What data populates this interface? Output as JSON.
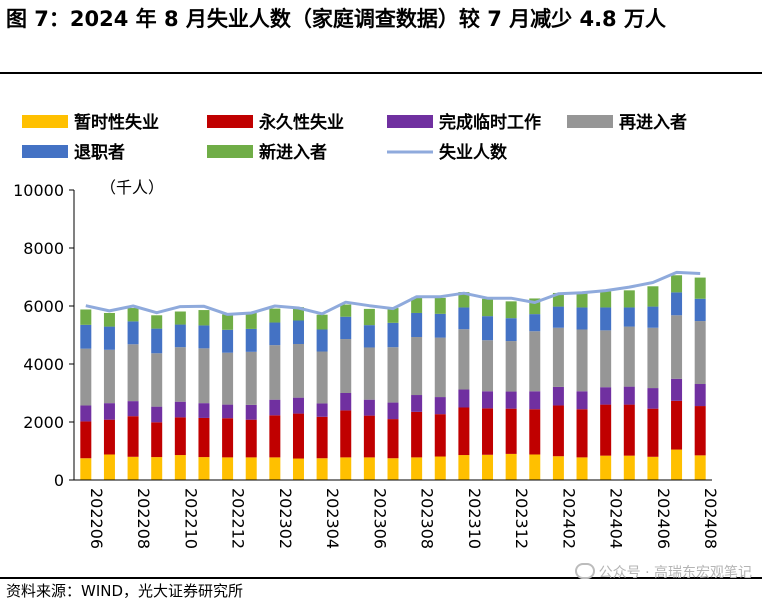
{
  "header": {
    "title": "图 7：2024 年 8 月失业人数（家庭调查数据）较 7 月减少 4.8 万人"
  },
  "footer": {
    "source": "资料来源：WIND，光大证券研究所",
    "watermark": "公众号 · 高瑞东宏观笔记"
  },
  "chart_data": {
    "type": "bar",
    "stacked": true,
    "unit_label": "（千人）",
    "ylim": [
      0,
      10000
    ],
    "yticks": [
      "0",
      "2000",
      "4000",
      "6000",
      "8000",
      "10000"
    ],
    "categories": [
      "202206",
      "202207",
      "202208",
      "202209",
      "202210",
      "202211",
      "202212",
      "202301",
      "202302",
      "202303",
      "202304",
      "202305",
      "202306",
      "202307",
      "202308",
      "202309",
      "202310",
      "202311",
      "202312",
      "202401",
      "202402",
      "202403",
      "202404",
      "202405",
      "202406",
      "202407",
      "202408"
    ],
    "xtick_labels": [
      "202206",
      "202208",
      "202210",
      "202212",
      "202302",
      "202304",
      "202306",
      "202308",
      "202310",
      "202312",
      "202402",
      "202404",
      "202406",
      "202408"
    ],
    "series": [
      {
        "name": "暂时性失业",
        "color": "#ffc000",
        "values": [
          750,
          880,
          800,
          790,
          860,
          790,
          780,
          780,
          780,
          740,
          750,
          780,
          780,
          750,
          780,
          810,
          860,
          870,
          900,
          880,
          820,
          780,
          840,
          840,
          800,
          1050,
          850
        ]
      },
      {
        "name": "永久性失业",
        "color": "#c00000",
        "values": [
          1270,
          1200,
          1400,
          1200,
          1300,
          1350,
          1350,
          1300,
          1450,
          1550,
          1430,
          1620,
          1440,
          1350,
          1570,
          1460,
          1640,
          1600,
          1560,
          1560,
          1750,
          1660,
          1760,
          1760,
          1660,
          1680,
          1700
        ]
      },
      {
        "name": "完成临时工作",
        "color": "#7030a0",
        "values": [
          550,
          570,
          520,
          540,
          540,
          510,
          470,
          510,
          540,
          550,
          460,
          600,
          550,
          570,
          580,
          590,
          620,
          590,
          590,
          620,
          640,
          620,
          600,
          620,
          710,
          760,
          760
        ]
      },
      {
        "name": "再进入者",
        "color": "#969696",
        "values": [
          1960,
          1840,
          1960,
          1840,
          1880,
          1890,
          1790,
          1830,
          1880,
          1850,
          1790,
          1860,
          1800,
          1910,
          2000,
          2050,
          2080,
          1760,
          1740,
          2070,
          2040,
          2130,
          1960,
          2070,
          2080,
          2190,
          2170
        ]
      },
      {
        "name": "退职者",
        "color": "#4472c4",
        "values": [
          820,
          800,
          790,
          850,
          780,
          790,
          790,
          790,
          780,
          810,
          760,
          770,
          770,
          840,
          830,
          820,
          750,
          830,
          790,
          590,
          730,
          760,
          790,
          660,
          730,
          790,
          770
        ]
      },
      {
        "name": "新进入者",
        "color": "#70ad47",
        "values": [
          530,
          470,
          460,
          460,
          450,
          530,
          530,
          550,
          480,
          460,
          510,
          420,
          560,
          510,
          530,
          550,
          530,
          600,
          580,
          540,
          470,
          520,
          550,
          590,
          700,
          590,
          730
        ]
      }
    ],
    "line_series": {
      "name": "失业人数",
      "color": "#8faadc",
      "values": [
        6010,
        5830,
        6000,
        5770,
        5980,
        5990,
        5710,
        5760,
        6000,
        5930,
        5730,
        6130,
        6010,
        5910,
        6320,
        6320,
        6440,
        6270,
        6270,
        6120,
        6420,
        6460,
        6530,
        6650,
        6810,
        7160,
        7120
      ]
    },
    "gridlines": false
  }
}
